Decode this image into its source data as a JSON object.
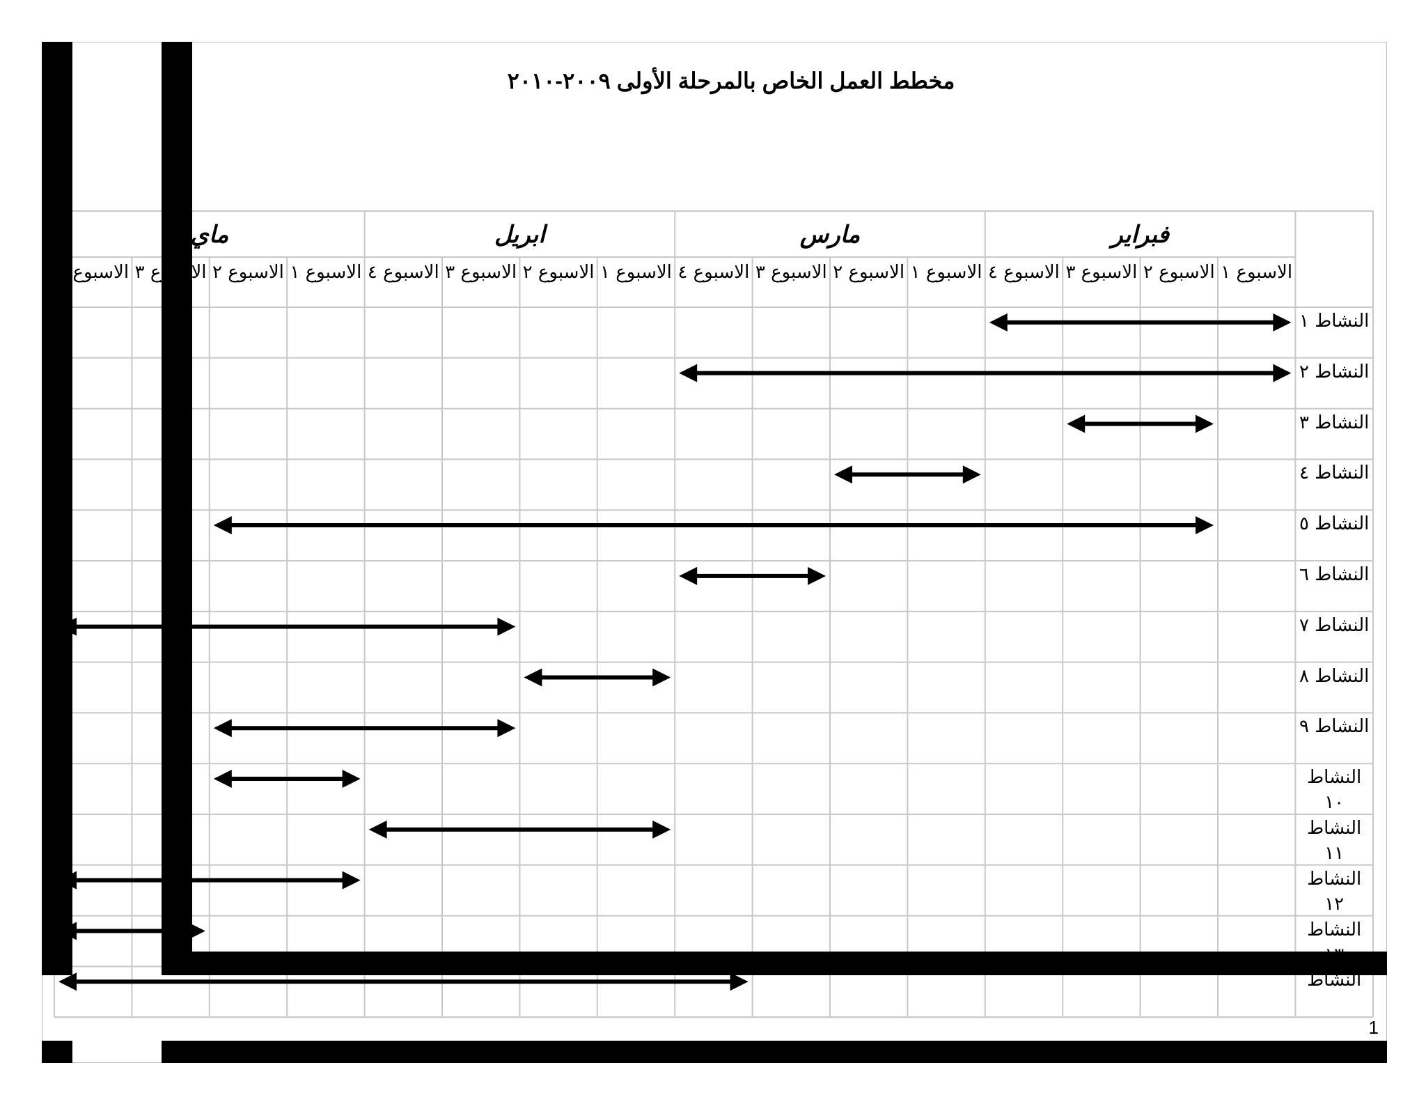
{
  "title": "مخطط العمل الخاص بالمرحلة الأولى ٢٠٠٩-٢٠١٠",
  "months": [
    "فبراير",
    "مارس",
    "ابريل",
    "ماي"
  ],
  "week_header": [
    "الاسبوع ١",
    "الاسبوع ٢",
    "الاسبوع ٣",
    "الاسبوع ٤"
  ],
  "activities": [
    {
      "label": "النشاط ١",
      "start_week": 1,
      "end_week": 4
    },
    {
      "label": "النشاط ٢",
      "start_week": 1,
      "end_week": 8
    },
    {
      "label": "النشاط ٣",
      "start_week": 2,
      "end_week": 3
    },
    {
      "label": "النشاط ٤",
      "start_week": 5,
      "end_week": 6
    },
    {
      "label": "النشاط ٥",
      "start_week": 2,
      "end_week": 14
    },
    {
      "label": "النشاط ٦",
      "start_week": 7,
      "end_week": 8
    },
    {
      "label": "النشاط ٧",
      "start_week": 11,
      "end_week": 16
    },
    {
      "label": "النشاط ٨",
      "start_week": 9,
      "end_week": 10
    },
    {
      "label": "النشاط ٩",
      "start_week": 11,
      "end_week": 14
    },
    {
      "label": "النشاط ١٠",
      "start_week": 13,
      "end_week": 14
    },
    {
      "label": "النشاط ١١",
      "start_week": 9,
      "end_week": 12
    },
    {
      "label": "النشاط ١٢",
      "start_week": 13,
      "end_week": 16
    },
    {
      "label": "النشاط ١٣",
      "start_week": 15,
      "end_week": 16
    },
    {
      "label": "النشاط",
      "start_week": 8,
      "end_week": 16
    }
  ],
  "page_number": "1",
  "colors": {
    "grid": "#c8c8c8",
    "ink": "#000000"
  }
}
